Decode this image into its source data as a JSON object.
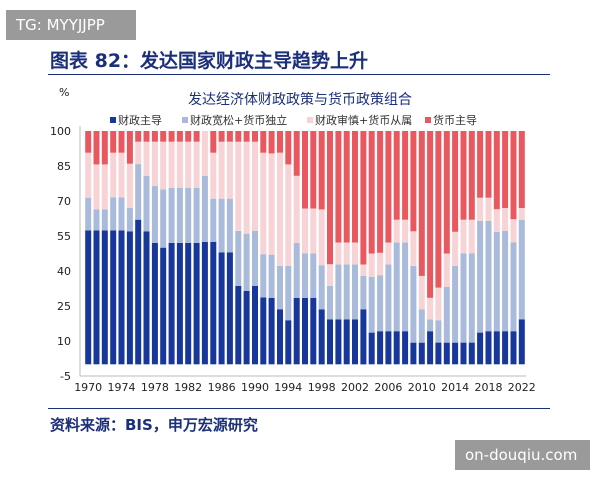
{
  "watermark_top": "TG: MYYJJPP",
  "watermark_bottom": "on-douqiu.com",
  "figure_title": "图表 82：发达国家财政主导趋势上升",
  "source": "资料来源：BIS，申万宏源研究",
  "chart_data": {
    "type": "bar",
    "stacked": true,
    "title": "发达经济体财政政策与货币政策组合",
    "ylabel": "%",
    "ylim": [
      -5,
      100
    ],
    "yticks": [
      100,
      85,
      70,
      55,
      40,
      25,
      10,
      -5
    ],
    "xtick_labels": [
      "1970",
      "1974",
      "1978",
      "1982",
      "1986",
      "1990",
      "1994",
      "1998",
      "2002",
      "2006",
      "2010",
      "2014",
      "2018",
      "2022"
    ],
    "legend_position": "top",
    "grid": false,
    "categories": [
      "1970",
      "1971",
      "1972",
      "1973",
      "1974",
      "1975",
      "1976",
      "1977",
      "1978",
      "1979",
      "1980",
      "1981",
      "1982",
      "1983",
      "1984",
      "1985",
      "1986",
      "1987",
      "1988",
      "1989",
      "1990",
      "1991",
      "1992",
      "1993",
      "1994",
      "1995",
      "1996",
      "1997",
      "1998",
      "1999",
      "2000",
      "2001",
      "2002",
      "2003",
      "2004",
      "2005",
      "2006",
      "2007",
      "2008",
      "2009",
      "2010",
      "2011",
      "2012",
      "2013",
      "2014",
      "2015",
      "2016",
      "2017",
      "2018",
      "2019",
      "2020",
      "2021",
      "2022"
    ],
    "series": [
      {
        "name": "财政主导",
        "color": "#17379a",
        "values": [
          57.4,
          57.4,
          57.4,
          57.4,
          57.4,
          57.0,
          62.0,
          57.0,
          52.0,
          50.0,
          52.0,
          52.0,
          52.0,
          52.0,
          52.5,
          52.5,
          48.0,
          48.0,
          33.6,
          31.5,
          33.6,
          28.7,
          28.5,
          23.6,
          18.9,
          28.5,
          28.5,
          28.5,
          23.6,
          19.3,
          19.3,
          19.3,
          19.3,
          23.6,
          13.6,
          14.2,
          14.2,
          14.2,
          14.2,
          9.3,
          9.3,
          14.2,
          9.3,
          9.3,
          9.3,
          9.3,
          9.3,
          13.6,
          14.2,
          14.2,
          14.2,
          14.2,
          19.3
        ]
      },
      {
        "name": "财政宽松+货币独立",
        "color": "#a9badb",
        "values": [
          14.0,
          9.0,
          9.0,
          14.1,
          14.1,
          10.0,
          23.8,
          23.8,
          24.4,
          25.0,
          23.7,
          23.7,
          23.7,
          23.7,
          28.3,
          18.5,
          23.0,
          23.0,
          23.6,
          24.5,
          23.6,
          18.5,
          18.5,
          18.6,
          23.3,
          23.5,
          19.0,
          19.0,
          18.9,
          14.3,
          23.5,
          23.5,
          23.5,
          14.3,
          23.9,
          24.0,
          28.6,
          38.0,
          38.0,
          32.9,
          14.3,
          5.1,
          9.6,
          23.9,
          32.9,
          38.2,
          38.2,
          47.9,
          47.3,
          42.6,
          43.0,
          38.0,
          42.7
        ]
      },
      {
        "name": "财政审慎+货币从属",
        "color": "#f8d3d5",
        "values": [
          19.3,
          19.3,
          19.3,
          19.2,
          19.2,
          19.0,
          9.6,
          14.6,
          19.0,
          20.4,
          19.7,
          19.7,
          19.7,
          19.7,
          19.2,
          19.7,
          24.4,
          24.4,
          38.2,
          39.4,
          38.2,
          43.5,
          43.4,
          48.5,
          43.5,
          28.8,
          19.3,
          19.3,
          23.9,
          9.3,
          9.4,
          9.4,
          9.4,
          4.9,
          10.0,
          9.6,
          9.4,
          9.8,
          9.8,
          14.8,
          14.3,
          9.2,
          14.0,
          14.3,
          14.6,
          14.5,
          14.5,
          9.9,
          9.9,
          9.7,
          9.8,
          10.0,
          5.0
        ]
      },
      {
        "name": "货币主导",
        "color": "#e8585e",
        "values": [
          9.3,
          14.3,
          14.3,
          9.3,
          9.3,
          14.0,
          4.6,
          4.6,
          4.6,
          4.6,
          4.6,
          4.6,
          4.6,
          4.6,
          0,
          9.3,
          4.6,
          4.6,
          4.6,
          4.6,
          4.6,
          9.3,
          9.6,
          9.3,
          14.3,
          19.2,
          33.2,
          33.2,
          33.6,
          57.1,
          47.8,
          47.8,
          47.8,
          57.2,
          52.5,
          52.2,
          47.8,
          38.0,
          38.0,
          43.0,
          62.1,
          71.5,
          67.1,
          52.5,
          43.2,
          38.0,
          38.0,
          28.6,
          28.6,
          33.5,
          33.0,
          37.8,
          33.0
        ]
      }
    ]
  }
}
